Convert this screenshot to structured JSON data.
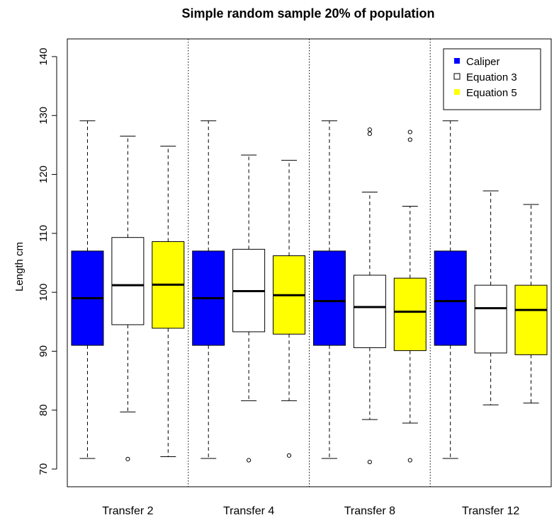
{
  "chart_data": {
    "type": "boxplot",
    "title": "Simple random sample 20% of population",
    "xlabel": "",
    "ylabel": "Length cm",
    "ylim": [
      67,
      143
    ],
    "yticks": [
      70,
      80,
      90,
      100,
      110,
      120,
      130,
      140
    ],
    "categories": [
      "Transfer 2",
      "Transfer 4",
      "Transfer 8",
      "Transfer 12"
    ],
    "grid": false,
    "group_separators": "dotted vertical lines",
    "legend_position": "top-right",
    "series": [
      {
        "name": "Caliper",
        "color": "#0000ff",
        "boxes": [
          {
            "min": 71.8,
            "q1": 91.0,
            "median": 99.0,
            "q3": 107.0,
            "max": 129.1,
            "outliers": []
          },
          {
            "min": 71.8,
            "q1": 91.0,
            "median": 99.0,
            "q3": 107.0,
            "max": 129.1,
            "outliers": []
          },
          {
            "min": 71.8,
            "q1": 91.0,
            "median": 98.5,
            "q3": 107.0,
            "max": 129.1,
            "outliers": []
          },
          {
            "min": 71.8,
            "q1": 91.0,
            "median": 98.5,
            "q3": 107.0,
            "max": 129.1,
            "outliers": []
          }
        ]
      },
      {
        "name": "Equation 3",
        "color": "#ffffff",
        "boxes": [
          {
            "min": 79.7,
            "q1": 94.5,
            "median": 101.2,
            "q3": 109.3,
            "max": 126.5,
            "outliers": [
              71.7
            ]
          },
          {
            "min": 81.6,
            "q1": 93.3,
            "median": 100.2,
            "q3": 107.3,
            "max": 123.3,
            "outliers": [
              71.5
            ]
          },
          {
            "min": 78.4,
            "q1": 90.6,
            "median": 97.5,
            "q3": 102.9,
            "max": 117.0,
            "outliers": [
              71.2,
              126.9,
              127.6
            ]
          },
          {
            "min": 80.9,
            "q1": 89.7,
            "median": 97.3,
            "q3": 101.2,
            "max": 117.2,
            "outliers": []
          }
        ]
      },
      {
        "name": "Equation 5",
        "color": "#ffff00",
        "boxes": [
          {
            "min": 72.1,
            "q1": 93.9,
            "median": 101.3,
            "q3": 108.6,
            "max": 124.8,
            "outliers": []
          },
          {
            "min": 81.6,
            "q1": 92.9,
            "median": 99.5,
            "q3": 106.2,
            "max": 122.4,
            "outliers": [
              72.3
            ]
          },
          {
            "min": 77.8,
            "q1": 90.1,
            "median": 96.7,
            "q3": 102.4,
            "max": 114.6,
            "outliers": [
              71.5,
              125.9,
              127.2
            ]
          },
          {
            "min": 81.2,
            "q1": 89.4,
            "median": 97.0,
            "q3": 101.2,
            "max": 114.9,
            "outliers": []
          }
        ]
      }
    ]
  }
}
